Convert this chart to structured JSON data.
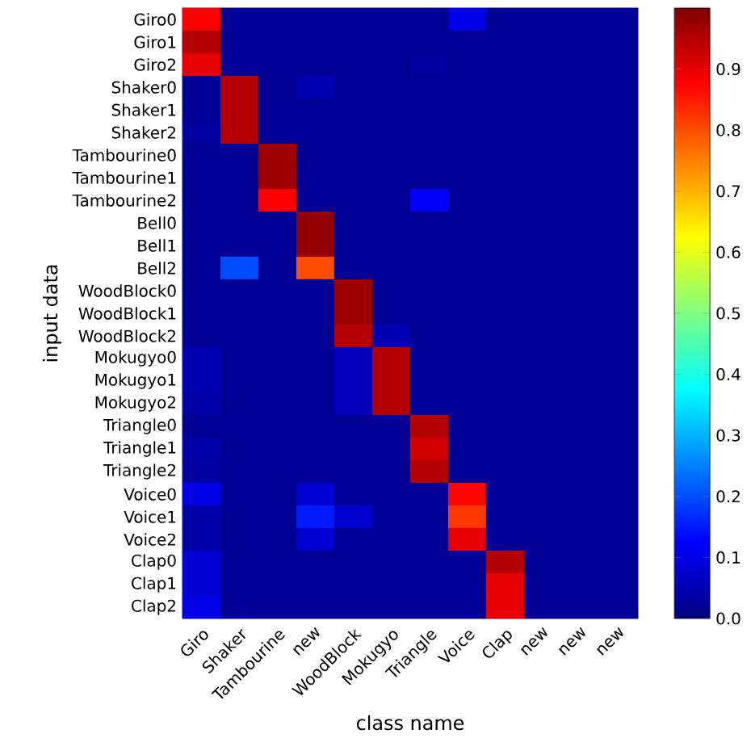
{
  "chart_data": {
    "type": "heatmap",
    "xlabel": "class name",
    "ylabel": "input data",
    "categories": [
      "Giro",
      "Shaker",
      "Tambourine",
      "new",
      "WoodBlock",
      "Mokugyo",
      "Triangle",
      "Voice",
      "Clap",
      "new",
      "new",
      "new"
    ],
    "y_categories": [
      "Giro0",
      "Giro1",
      "Giro2",
      "Shaker0",
      "Shaker1",
      "Shaker2",
      "Tambourine0",
      "Tambourine1",
      "Tambourine2",
      "Bell0",
      "Bell1",
      "Bell2",
      "WoodBlock0",
      "WoodBlock1",
      "WoodBlock2",
      "Mokugyo0",
      "Mokugyo1",
      "Mokugyo2",
      "Triangle0",
      "Triangle1",
      "Triangle2",
      "Voice0",
      "Voice1",
      "Voice2",
      "Clap0",
      "Clap1",
      "Clap2"
    ],
    "cells": [
      [
        0.88,
        0.02,
        0.02,
        0.02,
        0.02,
        0.02,
        0.02,
        0.1,
        0.02,
        0.02,
        0.02,
        0.02
      ],
      [
        0.95,
        0.02,
        0.02,
        0.02,
        0.02,
        0.02,
        0.02,
        0.02,
        0.02,
        0.02,
        0.02,
        0.02
      ],
      [
        0.9,
        0.02,
        0.02,
        0.02,
        0.02,
        0.02,
        0.03,
        0.02,
        0.02,
        0.02,
        0.02,
        0.02
      ],
      [
        0.02,
        0.95,
        0.02,
        0.05,
        0.02,
        0.02,
        0.02,
        0.02,
        0.02,
        0.02,
        0.02,
        0.02
      ],
      [
        0.02,
        0.95,
        0.02,
        0.02,
        0.02,
        0.02,
        0.02,
        0.02,
        0.02,
        0.02,
        0.02,
        0.02
      ],
      [
        0.03,
        0.95,
        0.02,
        0.02,
        0.02,
        0.02,
        0.02,
        0.02,
        0.02,
        0.02,
        0.02,
        0.02
      ],
      [
        0.02,
        0.02,
        0.97,
        0.02,
        0.02,
        0.02,
        0.02,
        0.02,
        0.02,
        0.02,
        0.02,
        0.02
      ],
      [
        0.02,
        0.02,
        0.97,
        0.02,
        0.02,
        0.02,
        0.02,
        0.02,
        0.02,
        0.02,
        0.02,
        0.02
      ],
      [
        0.02,
        0.02,
        0.88,
        0.02,
        0.02,
        0.02,
        0.12,
        0.02,
        0.02,
        0.02,
        0.02,
        0.02
      ],
      [
        0.02,
        0.02,
        0.02,
        0.98,
        0.02,
        0.02,
        0.02,
        0.02,
        0.02,
        0.02,
        0.02,
        0.02
      ],
      [
        0.02,
        0.02,
        0.02,
        0.98,
        0.02,
        0.02,
        0.02,
        0.02,
        0.02,
        0.02,
        0.02,
        0.02
      ],
      [
        0.02,
        0.2,
        0.02,
        0.8,
        0.02,
        0.02,
        0.02,
        0.02,
        0.02,
        0.02,
        0.02,
        0.02
      ],
      [
        0.02,
        0.02,
        0.02,
        0.02,
        0.97,
        0.02,
        0.02,
        0.02,
        0.02,
        0.02,
        0.02,
        0.02
      ],
      [
        0.02,
        0.02,
        0.02,
        0.02,
        0.97,
        0.02,
        0.02,
        0.02,
        0.02,
        0.02,
        0.02,
        0.02
      ],
      [
        0.02,
        0.02,
        0.02,
        0.02,
        0.95,
        0.05,
        0.02,
        0.02,
        0.02,
        0.02,
        0.02,
        0.02
      ],
      [
        0.05,
        0.02,
        0.02,
        0.02,
        0.06,
        0.95,
        0.02,
        0.02,
        0.02,
        0.02,
        0.02,
        0.02
      ],
      [
        0.05,
        0.02,
        0.02,
        0.02,
        0.06,
        0.95,
        0.02,
        0.02,
        0.02,
        0.02,
        0.02,
        0.02
      ],
      [
        0.04,
        0.02,
        0.02,
        0.02,
        0.06,
        0.95,
        0.02,
        0.02,
        0.02,
        0.02,
        0.02,
        0.02
      ],
      [
        0.02,
        0.02,
        0.02,
        0.02,
        0.02,
        0.02,
        0.95,
        0.02,
        0.02,
        0.02,
        0.02,
        0.02
      ],
      [
        0.04,
        0.02,
        0.02,
        0.02,
        0.02,
        0.02,
        0.92,
        0.02,
        0.02,
        0.02,
        0.02,
        0.02
      ],
      [
        0.03,
        0.02,
        0.02,
        0.02,
        0.02,
        0.02,
        0.95,
        0.02,
        0.02,
        0.02,
        0.02,
        0.02
      ],
      [
        0.1,
        0.02,
        0.02,
        0.08,
        0.02,
        0.02,
        0.02,
        0.87,
        0.02,
        0.02,
        0.02,
        0.02
      ],
      [
        0.04,
        0.02,
        0.02,
        0.15,
        0.08,
        0.02,
        0.02,
        0.82,
        0.02,
        0.02,
        0.02,
        0.02
      ],
      [
        0.04,
        0.02,
        0.02,
        0.08,
        0.02,
        0.02,
        0.02,
        0.9,
        0.02,
        0.02,
        0.02,
        0.02
      ],
      [
        0.08,
        0.02,
        0.02,
        0.02,
        0.02,
        0.02,
        0.02,
        0.02,
        0.95,
        0.02,
        0.02,
        0.02
      ],
      [
        0.08,
        0.02,
        0.02,
        0.02,
        0.02,
        0.02,
        0.02,
        0.02,
        0.9,
        0.02,
        0.02,
        0.02
      ],
      [
        0.1,
        0.02,
        0.02,
        0.02,
        0.02,
        0.02,
        0.02,
        0.02,
        0.9,
        0.02,
        0.02,
        0.02
      ]
    ],
    "clim": [
      0,
      1
    ],
    "cticks": [
      {
        "value": 0,
        "label": "0.0"
      },
      0.1,
      0.2,
      0.3,
      0.4,
      0.5,
      0.6,
      0.7,
      0.8,
      0.9
    ]
  }
}
